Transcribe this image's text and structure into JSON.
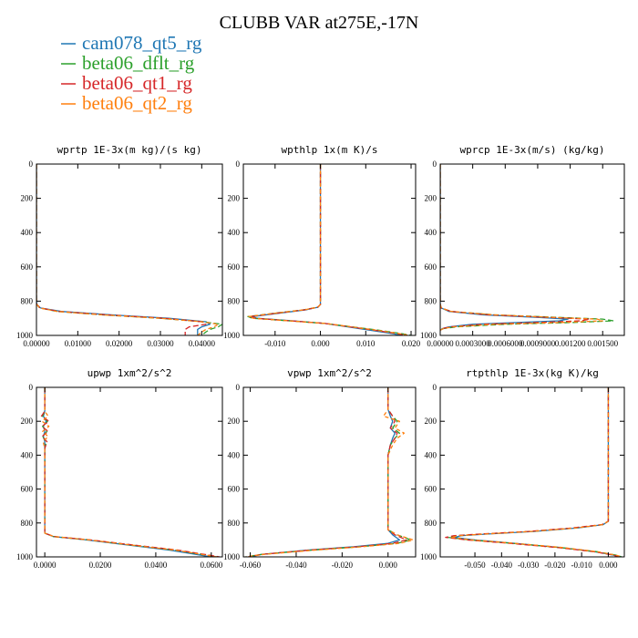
{
  "figure": {
    "title": "CLUBB VAR at275E,-17N"
  },
  "legend": [
    {
      "name": "cam078_qt5_rg",
      "color": "#1f77b4",
      "dash": "none"
    },
    {
      "name": "beta06_dflt_rg",
      "color": "#2ca02c",
      "dash": "6,3"
    },
    {
      "name": "beta06_qt1_rg",
      "color": "#d62728",
      "dash": "6,3"
    },
    {
      "name": "beta06_qt2_rg",
      "color": "#ff7f0e",
      "dash": "4,3"
    }
  ],
  "chart_data": [
    {
      "type": "line",
      "title": "wprtp  1E-3x(m kg)/(s kg)",
      "xlim": [
        0,
        0.045
      ],
      "ylim": [
        1000,
        0
      ],
      "xticks": [
        0,
        0.01,
        0.02,
        0.03,
        0.04
      ],
      "xtick_labels": [
        "0.00000",
        "0.01000",
        "0.02000",
        "0.03000",
        "0.04000"
      ],
      "yticks": [
        0,
        200,
        400,
        600,
        800,
        1000
      ],
      "series": [
        {
          "name": "cam078_qt5_rg",
          "y": [
            0,
            800,
            820,
            840,
            860,
            880,
            900,
            920,
            935,
            950,
            965,
            980,
            1000
          ],
          "x": [
            0,
            0,
            0.0001,
            0.001,
            0.006,
            0.018,
            0.032,
            0.041,
            0.042,
            0.04,
            0.039,
            0.039,
            0.039
          ]
        },
        {
          "name": "beta06_dflt_rg",
          "y": [
            0,
            800,
            820,
            840,
            860,
            880,
            900,
            920,
            935,
            950,
            965,
            980,
            1000
          ],
          "x": [
            0,
            0,
            0.0001,
            0.0008,
            0.005,
            0.016,
            0.03,
            0.04,
            0.045,
            0.044,
            0.042,
            0.041,
            0.04
          ]
        },
        {
          "name": "beta06_qt1_rg",
          "y": [
            0,
            800,
            820,
            840,
            860,
            880,
            900,
            920,
            935,
            950,
            965,
            980,
            1000
          ],
          "x": [
            0,
            0,
            0.0001,
            0.0009,
            0.0055,
            0.017,
            0.031,
            0.04,
            0.041,
            0.037,
            0.036,
            0.036,
            0.036
          ]
        },
        {
          "name": "beta06_qt2_rg",
          "y": [
            0,
            800,
            820,
            840,
            860,
            880,
            900,
            920,
            935,
            950,
            965,
            980,
            1000
          ],
          "x": [
            0,
            0,
            0.0001,
            0.0008,
            0.005,
            0.016,
            0.03,
            0.04,
            0.044,
            0.043,
            0.041,
            0.04,
            0.039
          ]
        }
      ]
    },
    {
      "type": "line",
      "title": "wpthlp  1x(m K)/s",
      "xlim": [
        -0.017,
        0.021
      ],
      "ylim": [
        1000,
        0
      ],
      "xticks": [
        -0.01,
        0,
        0.01,
        0.02
      ],
      "xtick_labels": [
        "-0.010",
        "0.000",
        "0.010",
        "0.020"
      ],
      "yticks": [
        0,
        200,
        400,
        600,
        800,
        1000
      ],
      "series": [
        {
          "name": "cam078_qt5_rg",
          "y": [
            0,
            820,
            835,
            850,
            870,
            890,
            900,
            915,
            930,
            950,
            970,
            990,
            1000
          ],
          "x": [
            0,
            0,
            -0.0005,
            -0.003,
            -0.009,
            -0.015,
            -0.014,
            -0.006,
            0.001,
            0.006,
            0.011,
            0.016,
            0.018
          ]
        },
        {
          "name": "beta06_dflt_rg",
          "y": [
            0,
            820,
            835,
            850,
            870,
            890,
            900,
            915,
            930,
            950,
            970,
            990,
            1000
          ],
          "x": [
            0,
            0,
            -0.0006,
            -0.0035,
            -0.01,
            -0.016,
            -0.015,
            -0.007,
            0.001,
            0.007,
            0.013,
            0.018,
            0.02
          ]
        },
        {
          "name": "beta06_qt1_rg",
          "y": [
            0,
            820,
            835,
            850,
            870,
            890,
            900,
            915,
            930,
            950,
            970,
            990,
            1000
          ],
          "x": [
            0,
            0,
            -0.0006,
            -0.0033,
            -0.0095,
            -0.0155,
            -0.0145,
            -0.0065,
            0.001,
            0.0065,
            0.012,
            0.017,
            0.019
          ]
        },
        {
          "name": "beta06_qt2_rg",
          "y": [
            0,
            820,
            835,
            850,
            870,
            890,
            900,
            915,
            930,
            950,
            970,
            990,
            1000
          ],
          "x": [
            0,
            0,
            -0.0006,
            -0.0034,
            -0.0098,
            -0.0158,
            -0.0148,
            -0.0068,
            0.001,
            0.0068,
            0.0125,
            0.0175,
            0.0195
          ]
        }
      ]
    },
    {
      "type": "line",
      "title": "wprcp  1E-3x(m/s) (kg/kg)",
      "xlim": [
        0,
        0.0017
      ],
      "ylim": [
        1000,
        0
      ],
      "xticks": [
        0,
        0.0003,
        0.0006,
        0.0009,
        0.0012,
        0.0015
      ],
      "xtick_labels": [
        "0.00000",
        "0.0003000",
        "0.0006000",
        "0.0009000",
        "0.001200",
        "0.001500"
      ],
      "yticks": [
        0,
        200,
        400,
        600,
        800,
        1000
      ],
      "series": [
        {
          "name": "cam078_qt5_rg",
          "y": [
            0,
            820,
            840,
            860,
            880,
            895,
            905,
            915,
            925,
            935,
            950,
            960,
            970,
            975
          ],
          "x": [
            0,
            0,
            1e-05,
            8e-05,
            0.0004,
            0.0009,
            0.00118,
            0.0011,
            0.0007,
            0.0003,
            8e-05,
            2e-05,
            0,
            0
          ]
        },
        {
          "name": "beta06_dflt_rg",
          "y": [
            0,
            820,
            840,
            860,
            880,
            895,
            905,
            915,
            925,
            935,
            950,
            960,
            970,
            975
          ],
          "x": [
            0,
            0,
            1e-05,
            0.0001,
            0.0005,
            0.0011,
            0.0015,
            0.0016,
            0.0012,
            0.0006,
            0.00015,
            3e-05,
            0,
            0
          ]
        },
        {
          "name": "beta06_qt1_rg",
          "y": [
            0,
            820,
            840,
            860,
            880,
            895,
            905,
            915,
            925,
            935,
            950,
            960,
            970,
            975
          ],
          "x": [
            0,
            0,
            1e-05,
            0.0001,
            0.00045,
            0.001,
            0.00138,
            0.0013,
            0.0009,
            0.0004,
            0.0001,
            2e-05,
            0,
            0
          ]
        },
        {
          "name": "beta06_qt2_rg",
          "y": [
            0,
            820,
            840,
            860,
            880,
            895,
            905,
            915,
            925,
            935,
            950,
            960,
            970,
            975
          ],
          "x": [
            0,
            0,
            1e-05,
            0.0001,
            0.0005,
            0.00105,
            0.00145,
            0.0015,
            0.0011,
            0.0005,
            0.00012,
            3e-05,
            0,
            0
          ]
        }
      ]
    },
    {
      "type": "line",
      "title": "upwp  1xm^2/s^2",
      "xlim": [
        -0.003,
        0.064
      ],
      "ylim": [
        1000,
        0
      ],
      "xticks": [
        0,
        0.02,
        0.04,
        0.06
      ],
      "xtick_labels": [
        "0.0000",
        "0.0200",
        "0.0400",
        "0.0600"
      ],
      "yticks": [
        0,
        200,
        400,
        600,
        800,
        1000
      ],
      "series": [
        {
          "name": "cam078_qt5_rg",
          "y": [
            0,
            140,
            170,
            200,
            230,
            260,
            290,
            320,
            360,
            860,
            880,
            900,
            930,
            960,
            1000
          ],
          "x": [
            0,
            0,
            -0.0005,
            0.0005,
            -0.0005,
            0,
            -0.0005,
            0,
            0,
            0,
            0.003,
            0.015,
            0.03,
            0.045,
            0.06
          ]
        },
        {
          "name": "beta06_dflt_rg",
          "y": [
            0,
            140,
            170,
            200,
            230,
            260,
            290,
            320,
            360,
            860,
            880,
            900,
            930,
            960,
            1000
          ],
          "x": [
            0,
            0,
            -0.0008,
            0.001,
            -0.0008,
            0.0008,
            -0.0008,
            0.0006,
            0,
            0,
            0.0032,
            0.016,
            0.031,
            0.047,
            0.062
          ]
        },
        {
          "name": "beta06_qt1_rg",
          "y": [
            0,
            140,
            170,
            200,
            230,
            260,
            290,
            320,
            360,
            860,
            880,
            900,
            930,
            960,
            1000
          ],
          "x": [
            0,
            0,
            -0.0012,
            0.0015,
            -0.001,
            0.0012,
            -0.001,
            0.0008,
            0,
            0,
            0.0034,
            0.0165,
            0.032,
            0.048,
            0.063
          ]
        },
        {
          "name": "beta06_qt2_rg",
          "y": [
            0,
            140,
            170,
            200,
            230,
            260,
            290,
            320,
            360,
            860,
            880,
            900,
            930,
            960,
            1000
          ],
          "x": [
            0,
            0,
            0.0012,
            -0.001,
            0.0015,
            -0.0008,
            0.0012,
            -0.0006,
            0,
            0,
            0.0033,
            0.016,
            0.031,
            0.047,
            0.062
          ]
        }
      ]
    },
    {
      "type": "line",
      "title": "vpwp  1xm^2/s^2",
      "xlim": [
        -0.063,
        0.012
      ],
      "ylim": [
        1000,
        0
      ],
      "xticks": [
        -0.06,
        -0.04,
        -0.02,
        0
      ],
      "xtick_labels": [
        "-0.060",
        "-0.040",
        "-0.020",
        "0.000"
      ],
      "yticks": [
        0,
        200,
        400,
        600,
        800,
        1000
      ],
      "series": [
        {
          "name": "cam078_qt5_rg",
          "y": [
            0,
            130,
            170,
            200,
            240,
            270,
            300,
            340,
            400,
            840,
            870,
            900,
            920,
            940,
            960,
            985,
            1000
          ],
          "x": [
            0,
            0,
            0.001,
            0.002,
            0.001,
            0.003,
            0.002,
            0.001,
            0,
            0,
            0.002,
            0.005,
            0,
            -0.015,
            -0.035,
            -0.055,
            -0.06
          ]
        },
        {
          "name": "beta06_dflt_rg",
          "y": [
            0,
            130,
            170,
            200,
            240,
            270,
            300,
            340,
            400,
            840,
            870,
            900,
            920,
            940,
            960,
            985,
            1000
          ],
          "x": [
            0,
            0,
            0.002,
            0.004,
            0.002,
            0.005,
            0.003,
            0.001,
            0,
            0,
            0.004,
            0.01,
            0.004,
            -0.012,
            -0.033,
            -0.055,
            -0.062
          ]
        },
        {
          "name": "beta06_qt1_rg",
          "y": [
            0,
            130,
            170,
            200,
            240,
            270,
            300,
            340,
            400,
            840,
            870,
            900,
            920,
            940,
            960,
            985,
            1000
          ],
          "x": [
            0,
            0,
            0.002,
            0.003,
            0.001,
            0.004,
            0.003,
            0.001,
            0,
            0,
            0.003,
            0.008,
            0.002,
            -0.013,
            -0.034,
            -0.055,
            -0.061
          ]
        },
        {
          "name": "beta06_qt2_rg",
          "y": [
            0,
            130,
            170,
            200,
            240,
            270,
            300,
            340,
            400,
            840,
            870,
            900,
            920,
            940,
            960,
            985,
            1000
          ],
          "x": [
            0,
            0,
            -0.002,
            0.005,
            0.003,
            0.007,
            0.004,
            0.002,
            0,
            0,
            0.004,
            0.011,
            0.005,
            -0.011,
            -0.032,
            -0.054,
            -0.062
          ]
        }
      ]
    },
    {
      "type": "line",
      "title": "rtpthlp  1E-3x(kg K)/kg",
      "xlim": [
        -0.063,
        0.006
      ],
      "ylim": [
        1000,
        0
      ],
      "xticks": [
        -0.05,
        -0.04,
        -0.03,
        -0.02,
        -0.01,
        0
      ],
      "xtick_labels": [
        "-0.050",
        "-0.040",
        "-0.030",
        "-0.020",
        "-0.010",
        "0.000"
      ],
      "yticks": [
        0,
        200,
        400,
        600,
        800,
        1000
      ],
      "series": [
        {
          "name": "cam078_qt5_rg",
          "y": [
            0,
            790,
            810,
            830,
            850,
            865,
            875,
            885,
            900,
            920,
            945,
            970,
            990,
            1000
          ],
          "x": [
            0,
            0,
            -0.002,
            -0.012,
            -0.028,
            -0.045,
            -0.055,
            -0.058,
            -0.05,
            -0.035,
            -0.018,
            -0.005,
            0.002,
            0.004
          ]
        },
        {
          "name": "beta06_dflt_rg",
          "y": [
            0,
            790,
            810,
            830,
            850,
            865,
            875,
            885,
            900,
            920,
            945,
            970,
            990,
            1000
          ],
          "x": [
            0,
            0,
            -0.0022,
            -0.013,
            -0.029,
            -0.047,
            -0.057,
            -0.06,
            -0.052,
            -0.036,
            -0.018,
            -0.004,
            0.003,
            0.005
          ]
        },
        {
          "name": "beta06_qt1_rg",
          "y": [
            0,
            790,
            810,
            830,
            850,
            865,
            875,
            885,
            900,
            920,
            945,
            970,
            990,
            1000
          ],
          "x": [
            0,
            0,
            -0.0025,
            -0.014,
            -0.03,
            -0.048,
            -0.058,
            -0.061,
            -0.053,
            -0.037,
            -0.019,
            -0.005,
            0.002,
            0.004
          ]
        },
        {
          "name": "beta06_qt2_rg",
          "y": [
            0,
            790,
            810,
            830,
            850,
            865,
            875,
            885,
            900,
            920,
            945,
            970,
            990,
            1000
          ],
          "x": [
            0,
            0,
            -0.0021,
            -0.0125,
            -0.029,
            -0.046,
            -0.056,
            -0.059,
            -0.051,
            -0.035,
            -0.017,
            -0.004,
            0.003,
            0.005
          ]
        }
      ]
    }
  ]
}
